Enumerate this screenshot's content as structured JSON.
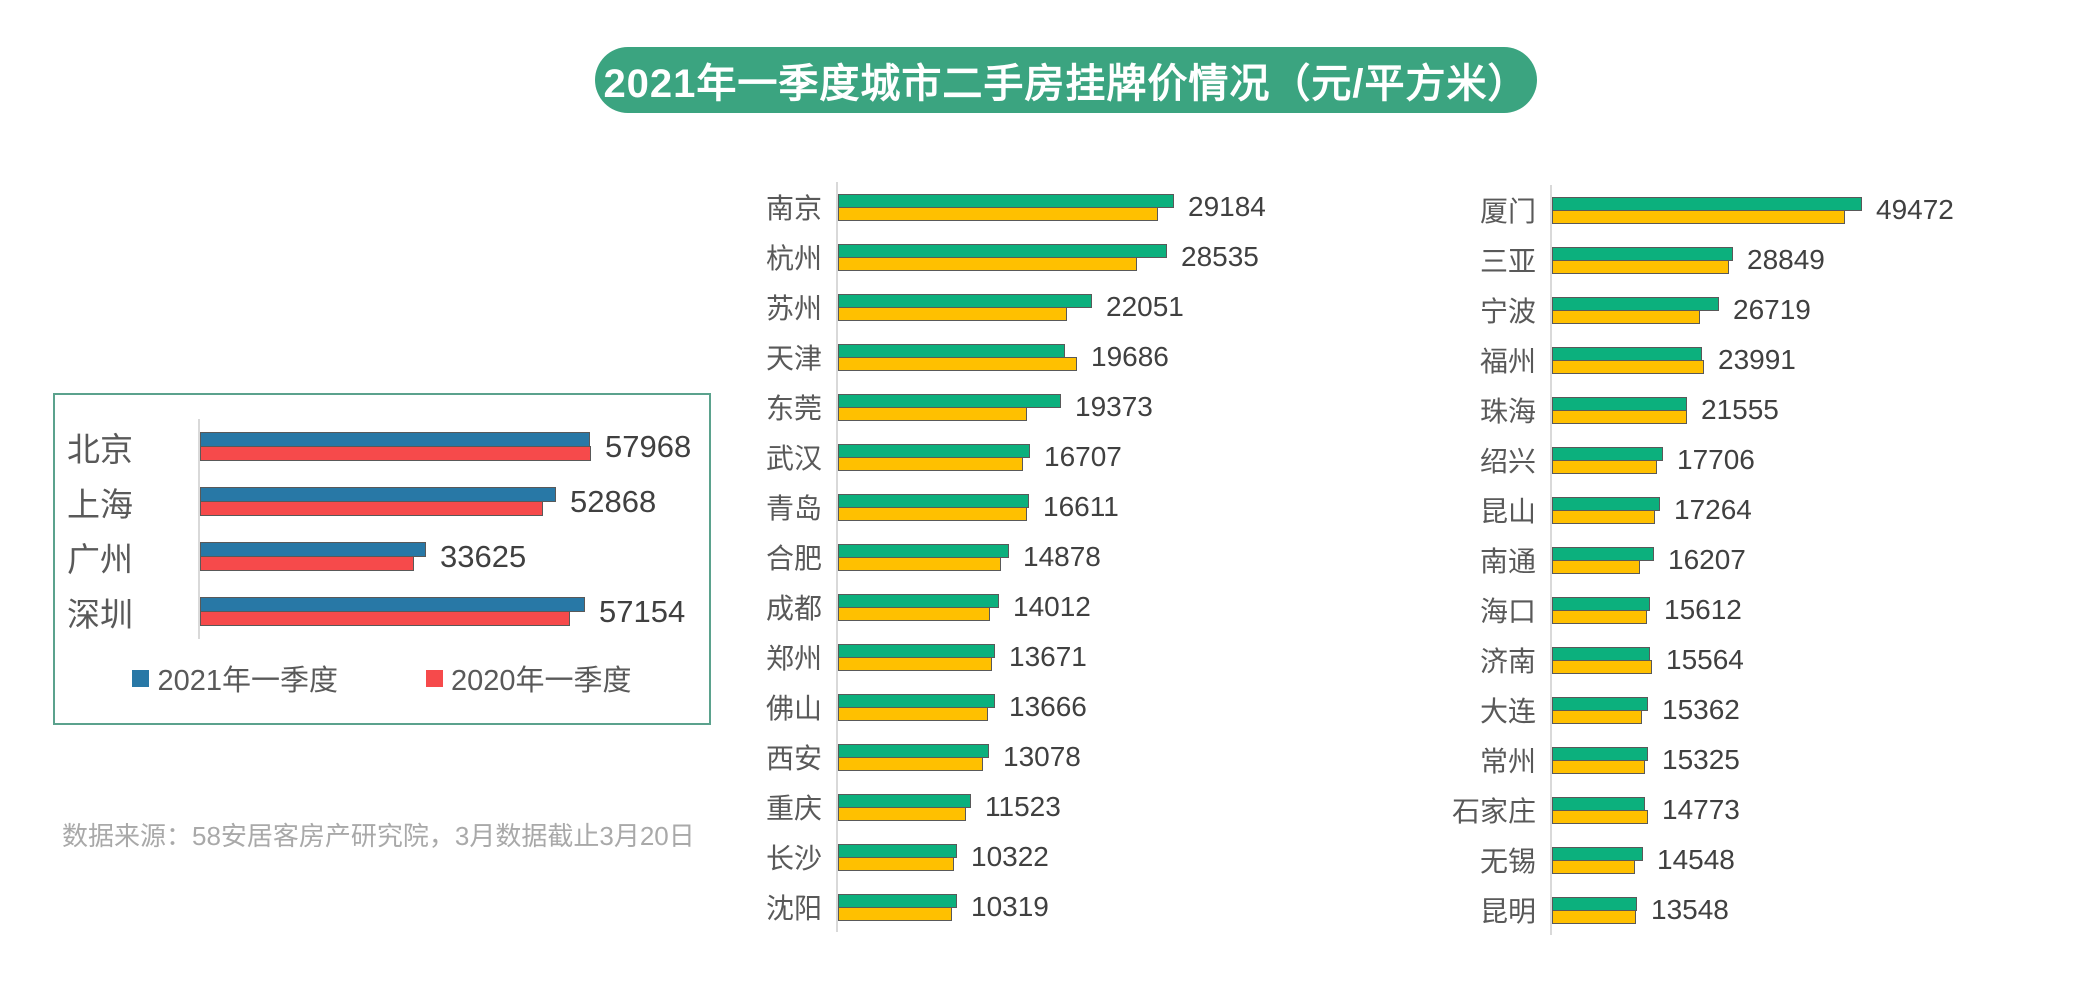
{
  "title": "2021年一季度城市二手房挂牌价情况（元/平方米）",
  "source_note": "数据来源：58安居客房产研究院，3月数据截止3月20日",
  "legend": {
    "series_2021_label": "2021年一季度",
    "series_2020_label": "2020年一季度"
  },
  "colors": {
    "title_bg": "#3BA480",
    "title_text": "#FFFFFF",
    "bar_2021_tier1": "#2878A6",
    "bar_2020_tier1": "#F64A4B",
    "bar_2021_tier23": "#0CB07D",
    "bar_2020_tier23": "#FFC000",
    "bar_outline": "#595959",
    "panel_border": "#5BA28D",
    "axis_line": "#D9D9D9",
    "category_text": "#595959",
    "value_text": "#404040",
    "source_text": "#A9A9A9"
  },
  "chart_data": [
    {
      "id": "tier1-first-tier-cities",
      "type": "bar",
      "orientation": "horizontal",
      "grid": false,
      "legend_position": "bottom",
      "categories": [
        "北京",
        "上海",
        "广州",
        "深圳"
      ],
      "series": [
        {
          "name": "2021年一季度",
          "color": "#2878A6",
          "values": [
            57968,
            52868,
            33625,
            57154
          ],
          "estimated": false
        },
        {
          "name": "2020年一季度",
          "color": "#F64A4B",
          "values": [
            58100,
            51000,
            31800,
            55000
          ],
          "estimated": true
        }
      ],
      "value_labels_shown_for": "2021年一季度"
    },
    {
      "id": "tier2-new-first-tier-cities",
      "type": "bar",
      "orientation": "horizontal",
      "grid": false,
      "legend_position": "none",
      "categories": [
        "南京",
        "杭州",
        "苏州",
        "天津",
        "东莞",
        "武汉",
        "青岛",
        "合肥",
        "成都",
        "郑州",
        "佛山",
        "西安",
        "重庆",
        "长沙",
        "沈阳"
      ],
      "series": [
        {
          "name": "2021年一季度",
          "color": "#0CB07D",
          "values": [
            29184,
            28535,
            22051,
            19686,
            19373,
            16707,
            16611,
            14878,
            14012,
            13671,
            13666,
            13078,
            11523,
            10322,
            10319
          ],
          "estimated": false
        },
        {
          "name": "2020年一季度",
          "color": "#FFC000",
          "values": [
            27800,
            26000,
            19900,
            20800,
            16400,
            16100,
            16400,
            14200,
            13200,
            13400,
            13000,
            12600,
            11100,
            10100,
            9900
          ],
          "estimated": true
        }
      ],
      "value_labels_shown_for": "2021年一季度"
    },
    {
      "id": "tier3-other-cities",
      "type": "bar",
      "orientation": "horizontal",
      "grid": false,
      "legend_position": "none",
      "categories": [
        "厦门",
        "三亚",
        "宁波",
        "福州",
        "珠海",
        "绍兴",
        "昆山",
        "南通",
        "海口",
        "济南",
        "大连",
        "常州",
        "石家庄",
        "无锡",
        "昆明"
      ],
      "series": [
        {
          "name": "2021年一季度",
          "color": "#0CB07D",
          "values": [
            49472,
            28849,
            26719,
            23991,
            21555,
            17706,
            17264,
            16207,
            15612,
            15564,
            15362,
            15325,
            14773,
            14548,
            13548
          ],
          "estimated": false
        },
        {
          "name": "2020年一季度",
          "color": "#FFC000",
          "values": [
            46800,
            28200,
            23600,
            24300,
            21500,
            16800,
            16400,
            14000,
            15200,
            16000,
            14300,
            14800,
            15400,
            13300,
            13400
          ],
          "estimated": true
        }
      ],
      "value_labels_shown_for": "2021年一季度"
    }
  ]
}
